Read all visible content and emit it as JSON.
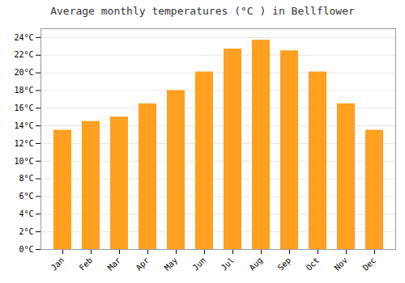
{
  "chart_data": {
    "type": "bar",
    "title": "Average monthly temperatures (°C ) in Bellflower",
    "categories": [
      "Jan",
      "Feb",
      "Mar",
      "Apr",
      "May",
      "Jun",
      "Jul",
      "Aug",
      "Sep",
      "Oct",
      "Nov",
      "Dec"
    ],
    "values": [
      13.5,
      14.5,
      15.0,
      16.5,
      18.0,
      20.1,
      22.7,
      23.7,
      22.5,
      20.1,
      16.5,
      13.5
    ],
    "color": "#FFA020",
    "ylim": [
      0,
      25
    ],
    "yticks": [
      {
        "value": 0,
        "label": "0°C"
      },
      {
        "value": 2,
        "label": "2°C"
      },
      {
        "value": 4,
        "label": "4°C"
      },
      {
        "value": 6,
        "label": "6°C"
      },
      {
        "value": 8,
        "label": "8°C"
      },
      {
        "value": 10,
        "label": "10°C"
      },
      {
        "value": 12,
        "label": "12°C"
      },
      {
        "value": 14,
        "label": "14°C"
      },
      {
        "value": 16,
        "label": "16°C"
      },
      {
        "value": 18,
        "label": "18°C"
      },
      {
        "value": 20,
        "label": "20°C"
      },
      {
        "value": 22,
        "label": "22°C"
      },
      {
        "value": 24,
        "label": "24°C"
      }
    ],
    "grid": true
  }
}
